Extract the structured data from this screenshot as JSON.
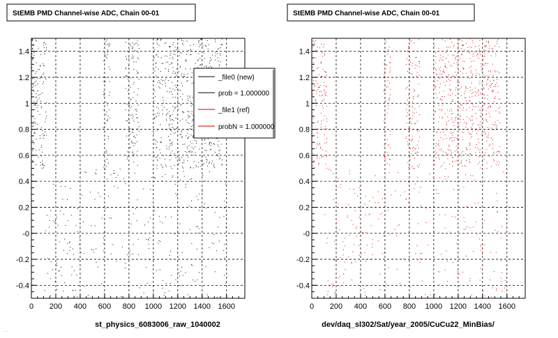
{
  "canvas": {
    "background": "#ffffff",
    "footer_text": "…"
  },
  "chart_data": [
    {
      "type": "scatter",
      "title": "StEMB PMD Channel-wise ADC, Chain 00-01",
      "xlabel": "st_physics_6083006_raw_1040002",
      "ylabel": "",
      "xlim": [
        0,
        1750
      ],
      "ylim": [
        -0.5,
        1.5
      ],
      "x_ticks": [
        0,
        200,
        400,
        600,
        800,
        1000,
        1200,
        1400,
        1600
      ],
      "y_ticks": [
        -0.4,
        -0.2,
        0,
        0.2,
        0.4,
        0.6,
        0.8,
        1,
        1.2,
        1.4
      ],
      "y_tick_labels": [
        "-0.4",
        "-0.2",
        "-0",
        "0.2",
        "0.4",
        "0.6",
        "0.8",
        "1",
        "1.2",
        "1.4"
      ],
      "grid": true,
      "marker_color": "#000000",
      "series": [
        {
          "name": "_file0 (new)",
          "color": "#000000",
          "bands": [
            [
              0,
              120
            ],
            [
              590,
              640
            ],
            [
              770,
              880
            ],
            [
              1000,
              1560
            ]
          ],
          "band_y": [
            0.5,
            1.5
          ],
          "sparse_y": [
            -0.5,
            0.5
          ]
        }
      ],
      "legend": {
        "placement": "top-right",
        "entries": [
          {
            "label": "_file0 (new)",
            "color": "#000000"
          },
          {
            "label": "prob = 1.000000",
            "color": "#000000"
          },
          {
            "label": "_file1 (ref)",
            "color": "#cc0000"
          },
          {
            "label": "probN = 1.000000",
            "color": "#cc0000"
          }
        ]
      }
    },
    {
      "type": "scatter",
      "title": "StEMB PMD Channel-wise ADC, Chain 00-01",
      "xlabel": "dev/daq_sl302/Sat/year_2005/CuCu22_MinBias/",
      "ylabel": "",
      "xlim": [
        0,
        1750
      ],
      "ylim": [
        -0.5,
        1.5
      ],
      "x_ticks": [
        0,
        200,
        400,
        600,
        800,
        1000,
        1200,
        1400,
        1600
      ],
      "y_ticks": [
        -0.4,
        -0.2,
        0,
        0.2,
        0.4,
        0.6,
        0.8,
        1,
        1.2,
        1.4
      ],
      "y_tick_labels": [
        "-0.4",
        "-0.2",
        "-0",
        "0.2",
        "0.4",
        "0.6",
        "0.8",
        "1",
        "1.2",
        "1.4"
      ],
      "grid": true,
      "marker_color": "#dd0000",
      "series": [
        {
          "name": "_file1 (ref)",
          "color": "#dd0000",
          "bands": [
            [
              0,
              120
            ],
            [
              590,
              640
            ],
            [
              770,
              880
            ],
            [
              1000,
              1540
            ]
          ],
          "band_y": [
            0.5,
            1.5
          ],
          "sparse_y": [
            -0.5,
            0.5
          ]
        }
      ]
    }
  ]
}
